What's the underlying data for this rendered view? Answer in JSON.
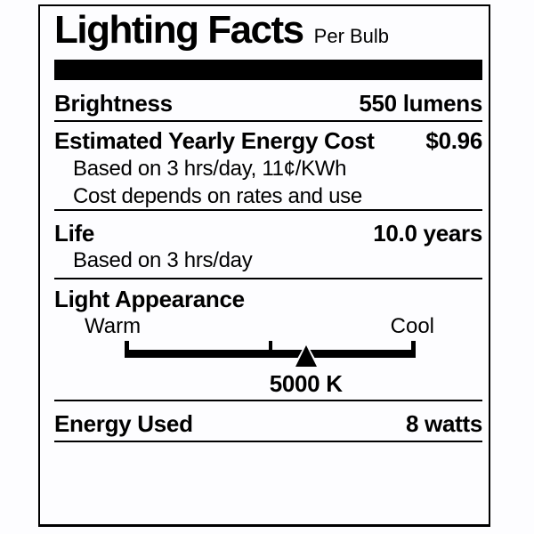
{
  "colors": {
    "ink": "#000000",
    "background": "#fdfdff"
  },
  "label": {
    "title": "Lighting Facts",
    "per_unit": "Per Bulb",
    "brightness": {
      "name": "Brightness",
      "value": "550 lumens"
    },
    "energy_cost": {
      "name": "Estimated Yearly Energy Cost",
      "value": "$0.96",
      "note1": "Based on 3 hrs/day, 11¢/KWh",
      "note2": "Cost depends on rates and use"
    },
    "life": {
      "name": "Life",
      "value": "10.0 years",
      "note": "Based on 3 hrs/day"
    },
    "light_appearance": {
      "name": "Light Appearance",
      "warm_label": "Warm",
      "cool_label": "Cool",
      "temperature": "5000 K",
      "marker_percent": 62.3
    },
    "energy_used": {
      "name": "Energy Used",
      "value": "8 watts"
    }
  }
}
